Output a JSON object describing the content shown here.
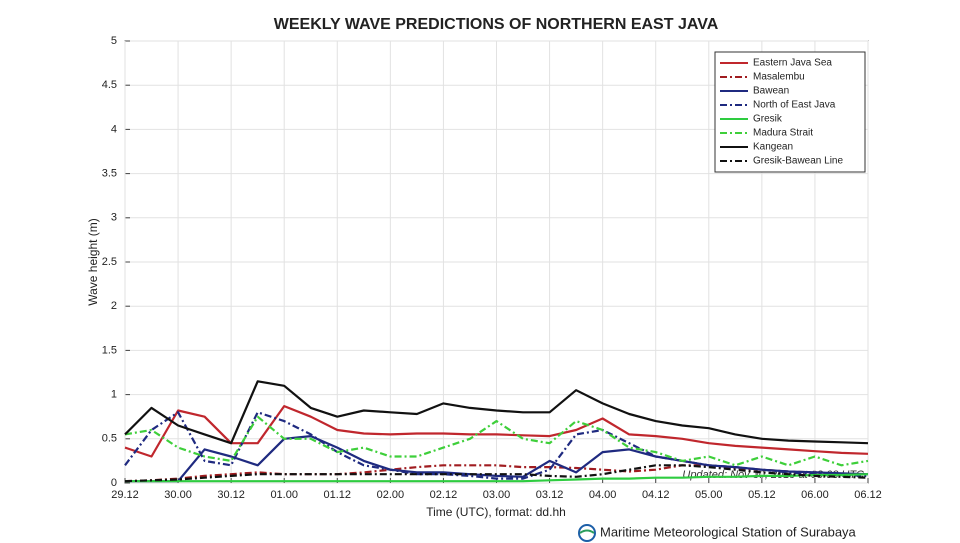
{
  "chart_data": {
    "type": "line",
    "title": "WEEKLY WAVE PREDICTIONS OF NORTHERN EAST JAVA",
    "y_label": "Wave height (m)",
    "x_label": "Time (UTC), format: dd.hh",
    "annotation": "Updated: Nov 30, 2019 at 08:03 UTC",
    "footer": "Maritime Meteorological Station of Surabaya",
    "categories": [
      "29.12",
      null,
      "30.00",
      null,
      "30.12",
      null,
      "01.00",
      null,
      "01.12",
      null,
      "02.00",
      null,
      "02.12",
      null,
      "03.00",
      null,
      "03.12",
      null,
      "04.00",
      null,
      "04.12",
      null,
      "05.00",
      null,
      "05.12",
      null,
      "06.00",
      null,
      "06.12"
    ],
    "ylim": [
      0,
      5
    ],
    "yticks": [
      0,
      0.5,
      1,
      1.5,
      2,
      2.5,
      3,
      3.5,
      4,
      4.5,
      5
    ],
    "grid": true,
    "legend": "upper-right",
    "series": [
      {
        "name": "Eastern Java Sea",
        "color": "#c0272d",
        "style": "solid",
        "values": [
          0.4,
          0.3,
          0.82,
          0.75,
          0.45,
          0.45,
          0.87,
          0.75,
          0.6,
          0.56,
          0.55,
          0.56,
          0.56,
          0.55,
          0.55,
          0.54,
          0.53,
          0.6,
          0.73,
          0.55,
          0.53,
          0.5,
          0.45,
          0.42,
          0.4,
          0.38,
          0.36,
          0.34,
          0.33
        ]
      },
      {
        "name": "Masalembu",
        "color": "#a01c20",
        "style": "dashdot",
        "values": [
          0.02,
          0.03,
          0.05,
          0.08,
          0.1,
          0.12,
          0.1,
          0.1,
          0.1,
          0.12,
          0.15,
          0.18,
          0.2,
          0.2,
          0.2,
          0.18,
          0.18,
          0.17,
          0.15,
          0.13,
          0.15,
          0.2,
          0.2,
          0.17,
          0.15,
          0.13,
          0.12,
          0.1,
          0.1
        ]
      },
      {
        "name": "Bawean",
        "color": "#1f2a80",
        "style": "solid",
        "values": [
          0.02,
          0.02,
          0.02,
          0.38,
          0.3,
          0.2,
          0.5,
          0.53,
          0.4,
          0.25,
          0.15,
          0.12,
          0.12,
          0.1,
          0.08,
          0.07,
          0.25,
          0.12,
          0.35,
          0.38,
          0.3,
          0.25,
          0.2,
          0.18,
          0.15,
          0.13,
          0.12,
          0.11,
          0.1
        ]
      },
      {
        "name": "North of East Java",
        "color": "#1f2a80",
        "style": "dashdot",
        "values": [
          0.2,
          0.6,
          0.8,
          0.25,
          0.2,
          0.8,
          0.7,
          0.55,
          0.35,
          0.2,
          0.15,
          0.1,
          0.1,
          0.08,
          0.05,
          0.05,
          0.15,
          0.55,
          0.6,
          0.45,
          0.3,
          0.25,
          0.2,
          0.18,
          0.15,
          0.12,
          0.1,
          0.09,
          0.08
        ]
      },
      {
        "name": "Gresik",
        "color": "#2ecc40",
        "style": "solid",
        "values": [
          0.02,
          0.02,
          0.02,
          0.02,
          0.02,
          0.02,
          0.02,
          0.02,
          0.02,
          0.02,
          0.02,
          0.02,
          0.02,
          0.02,
          0.02,
          0.02,
          0.03,
          0.04,
          0.05,
          0.05,
          0.06,
          0.06,
          0.07,
          0.07,
          0.08,
          0.08,
          0.09,
          0.09,
          0.1
        ]
      },
      {
        "name": "Madura Strait",
        "color": "#3ecf3a",
        "style": "dashdot",
        "values": [
          0.55,
          0.6,
          0.4,
          0.3,
          0.25,
          0.75,
          0.5,
          0.5,
          0.35,
          0.4,
          0.3,
          0.3,
          0.4,
          0.5,
          0.7,
          0.5,
          0.45,
          0.7,
          0.6,
          0.4,
          0.35,
          0.25,
          0.3,
          0.2,
          0.3,
          0.2,
          0.3,
          0.2,
          0.25
        ]
      },
      {
        "name": "Kangean",
        "color": "#111111",
        "style": "solid",
        "values": [
          0.55,
          0.85,
          0.65,
          0.55,
          0.45,
          1.15,
          1.1,
          0.85,
          0.75,
          0.82,
          0.8,
          0.78,
          0.9,
          0.85,
          0.82,
          0.8,
          0.8,
          1.05,
          0.9,
          0.78,
          0.7,
          0.65,
          0.62,
          0.55,
          0.5,
          0.48,
          0.47,
          0.46,
          0.45
        ]
      },
      {
        "name": "Gresik-Bawean Line",
        "color": "#111111",
        "style": "dashdot",
        "values": [
          0.02,
          0.03,
          0.04,
          0.06,
          0.08,
          0.1,
          0.1,
          0.1,
          0.1,
          0.1,
          0.1,
          0.1,
          0.1,
          0.1,
          0.1,
          0.1,
          0.08,
          0.07,
          0.1,
          0.15,
          0.2,
          0.2,
          0.18,
          0.15,
          0.12,
          0.1,
          0.08,
          0.07,
          0.06
        ]
      }
    ]
  }
}
